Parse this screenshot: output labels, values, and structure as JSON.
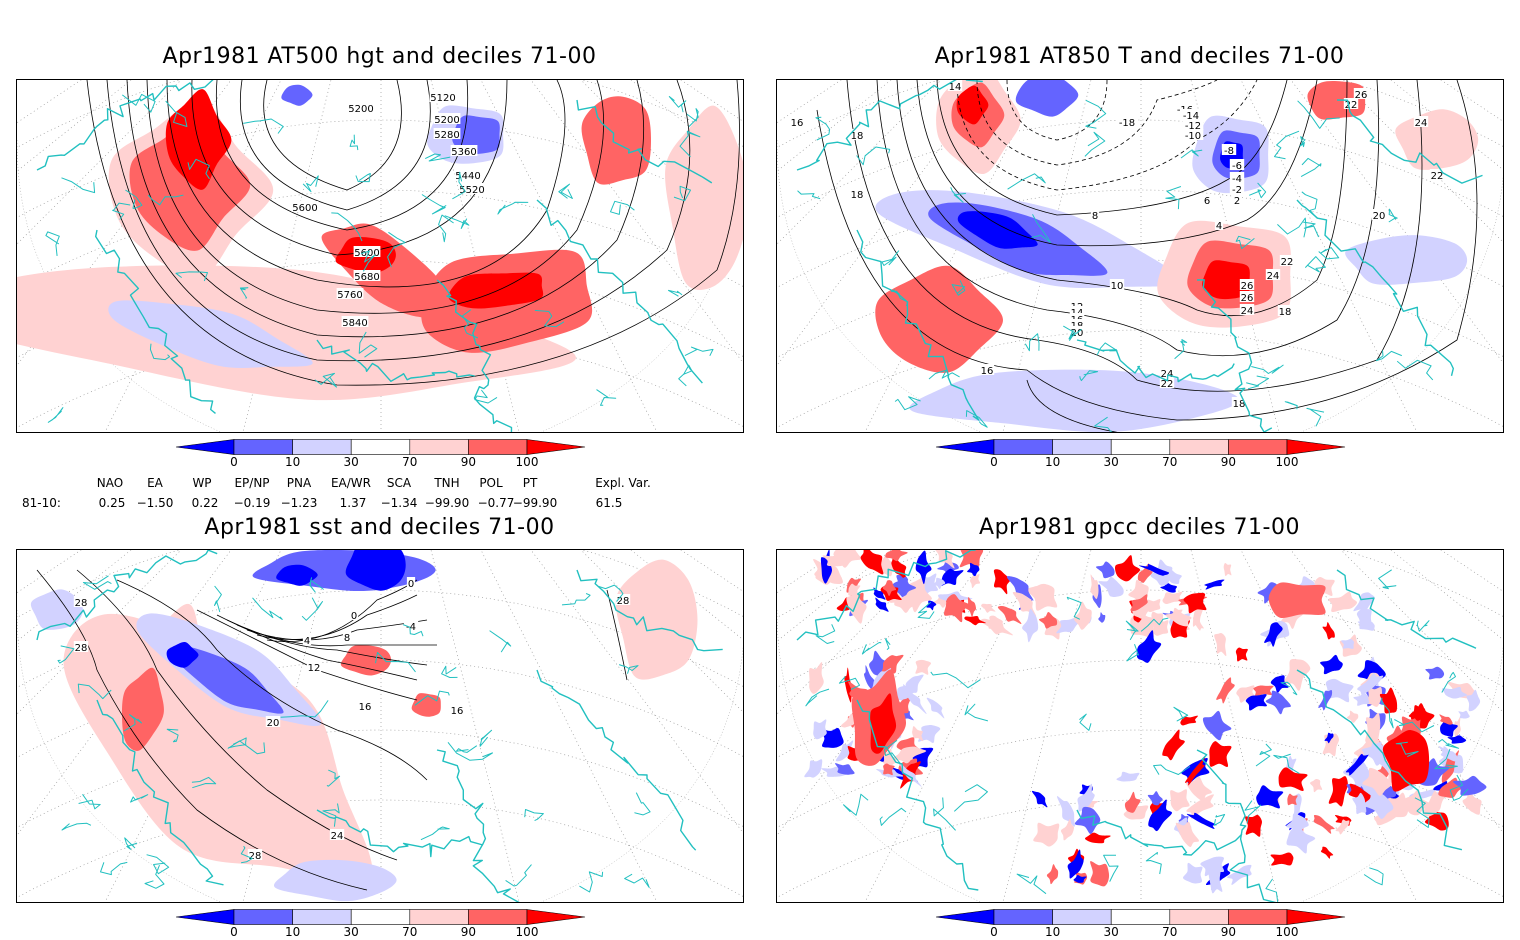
{
  "panels": [
    {
      "id": "p1",
      "title": "Apr1981 AT500 hgt and deciles 71-00",
      "contour_labels": [
        "5200",
        "5120",
        "5200",
        "5280",
        "5360",
        "5440",
        "5520",
        "5600",
        "5600",
        "5680",
        "5760",
        "5840"
      ]
    },
    {
      "id": "p2",
      "title": "Apr1981 AT850 T and deciles 71-00",
      "contour_labels": [
        "14",
        "16",
        "18",
        "18",
        "-18",
        "-16",
        "-14",
        "-12",
        "-10",
        "-8",
        "-6",
        "-4",
        "-2",
        "2",
        "6",
        "4",
        "8",
        "10",
        "12",
        "14",
        "16",
        "18",
        "20",
        "22",
        "24",
        "26",
        "26",
        "24",
        "22",
        "26",
        "24",
        "22",
        "20",
        "18",
        "16",
        "24",
        "22",
        "18"
      ]
    },
    {
      "id": "p3",
      "title": "Apr1981 sst and deciles 71-00",
      "contour_labels": [
        "28",
        "28",
        "0",
        "0",
        "-4",
        "4",
        "8",
        "12",
        "16",
        "20",
        "16",
        "24",
        "28",
        "28"
      ]
    },
    {
      "id": "p4",
      "title": "Apr1981 gpcc deciles 71-00",
      "contour_labels": []
    }
  ],
  "colorbar": {
    "labels": [
      "0",
      "10",
      "30",
      "70",
      "90",
      "100"
    ],
    "colors": [
      "#0000ff",
      "#6464ff",
      "#d2d2ff",
      "#ffffff",
      "#ffd2d2",
      "#ff6464",
      "#ff0000"
    ]
  },
  "indices": {
    "headers": [
      "NAO",
      "EA",
      "WP",
      "EP/NP",
      "PNA",
      "EA/WR",
      "SCA",
      "TNH",
      "POL",
      "PT",
      "Expl. Var."
    ],
    "row_label": "81-10:",
    "values": [
      "0.25",
      "−1.50",
      "0.22",
      "−0.19",
      "−1.23",
      "1.37",
      "−1.34",
      "−99.90",
      "−0.77",
      "−99.90",
      "61.5"
    ]
  },
  "colors": {
    "coast": "#22c0c0",
    "grid": "#888888",
    "strong_neg": "#0000ff",
    "mid_neg": "#6464ff",
    "weak_neg": "#d2d2ff",
    "weak_pos": "#ffd2d2",
    "mid_pos": "#ff6464",
    "strong_pos": "#ff0000"
  }
}
